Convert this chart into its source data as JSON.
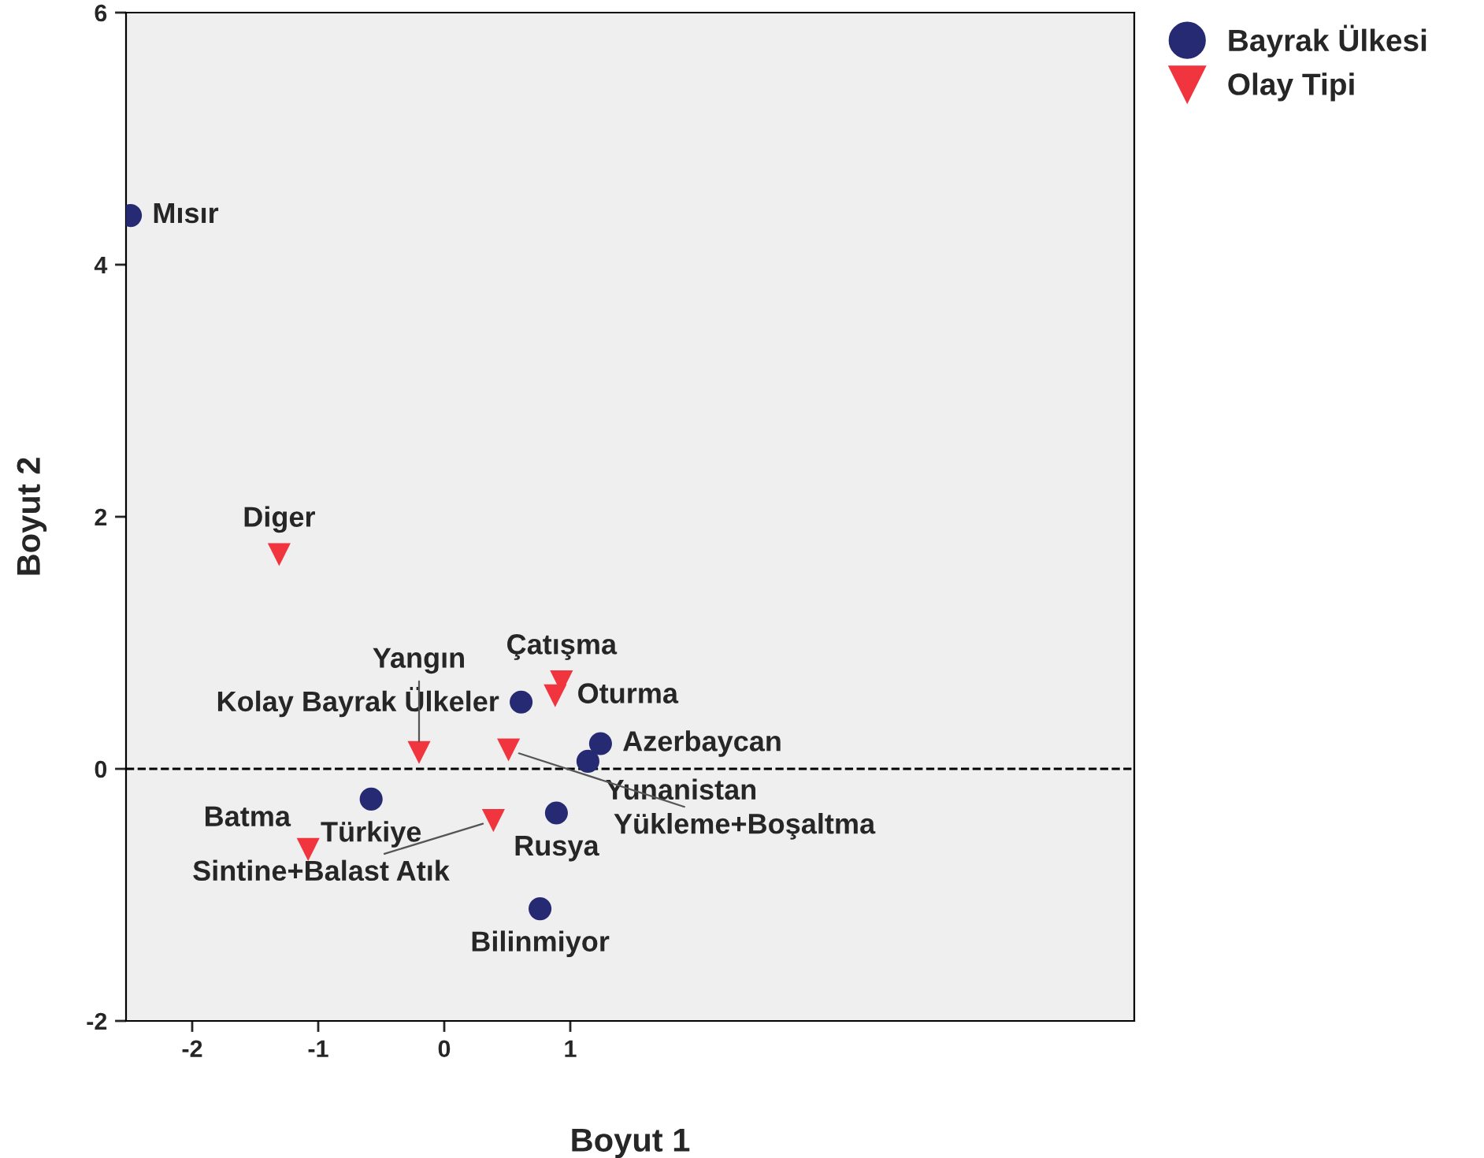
{
  "chart_data": {
    "type": "scatter",
    "xlabel": "Boyut 1",
    "ylabel": "Boyut 2",
    "xlim": [
      -2.525,
      5.475
    ],
    "xticks": [
      -2,
      -1,
      0,
      1
    ],
    "ylim": [
      -2,
      6
    ],
    "yticks": [
      -2,
      0,
      2,
      4,
      6
    ],
    "grid": false,
    "legend": "top right",
    "series": [
      {
        "name": "Bayrak Ülkesi",
        "color": "#262a72",
        "marker": "circle",
        "x": [
          -2.49,
          0.61,
          1.24,
          1.14,
          -0.58,
          0.89,
          0.76
        ],
        "values": [
          4.39,
          0.53,
          0.2,
          0.06,
          -0.24,
          -0.35,
          -1.11
        ]
      },
      {
        "name": "Olay Tipi",
        "color": "#f0353e",
        "marker": "triangle",
        "x": [
          -1.31,
          0.93,
          0.88,
          -0.2,
          0.51,
          0.39,
          -1.08
        ],
        "values": [
          1.7,
          0.69,
          0.58,
          0.13,
          0.15,
          -0.41,
          -0.64
        ]
      }
    ],
    "ref_lines": [
      {
        "axis": "y",
        "value": 0,
        "line_style": "dashed",
        "color": "#000000"
      }
    ],
    "annotations": [
      {
        "text": "Mısır",
        "x": -2.49,
        "y": 4.39
      },
      {
        "text": "Kolay Bayrak Ülkeler",
        "x": 0.61,
        "y": 0.53
      },
      {
        "text": "Azerbaycan",
        "x": 1.24,
        "y": 0.2
      },
      {
        "text": "Yunanistan",
        "x": 1.14,
        "y": 0.06
      },
      {
        "text": "Türkiye",
        "x": -0.58,
        "y": -0.24
      },
      {
        "text": "Rusya",
        "x": 0.89,
        "y": -0.35
      },
      {
        "text": "Bilinmiyor",
        "x": 0.76,
        "y": -1.11
      },
      {
        "text": "Diger",
        "x": -1.31,
        "y": 1.7
      },
      {
        "text": "Çatışma",
        "x": 0.93,
        "y": 0.69
      },
      {
        "text": "Oturma",
        "x": 0.88,
        "y": 0.58
      },
      {
        "text": "Yangın",
        "x": -0.2,
        "y": 0.13
      },
      {
        "text": "Yükleme+Boşaltma",
        "x": 0.51,
        "y": 0.15
      },
      {
        "text": "Sintine+Balast Atık",
        "x": 0.39,
        "y": -0.41
      },
      {
        "text": "Batma",
        "x": -1.08,
        "y": -0.64
      }
    ]
  }
}
